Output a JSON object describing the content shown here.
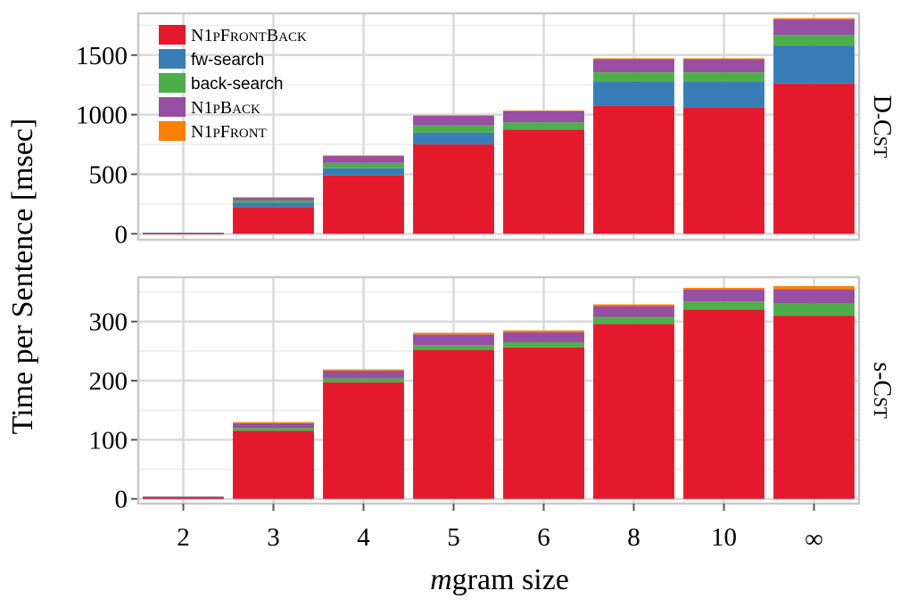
{
  "chart_data": {
    "type": "bar",
    "stacked": true,
    "categories": [
      "2",
      "3",
      "4",
      "5",
      "6",
      "8",
      "10",
      "∞"
    ],
    "xlabel": {
      "italic": "m",
      "rest": "gram size"
    },
    "ylabel": "Time per Sentence [msec]",
    "legend": [
      {
        "key": "N1pFrontBack",
        "label": "N1pFrontBack",
        "color": "#e41a2c"
      },
      {
        "key": "fw-search",
        "label": "fw-search",
        "color": "#377eb8"
      },
      {
        "key": "back-search",
        "label": "back-search",
        "color": "#4daf4a"
      },
      {
        "key": "N1pBack",
        "label": "N1pBack",
        "color": "#984ea3"
      },
      {
        "key": "N1pFront",
        "label": "N1pFront",
        "color": "#ff7f00"
      }
    ],
    "legend_placement": "top-left of upper panel",
    "grid": true,
    "panels": [
      {
        "strip": "D-Cst",
        "ylim": [
          -50,
          1850
        ],
        "yticks": [
          0,
          500,
          1000,
          1500
        ],
        "series": [
          {
            "name": "N1pFrontBack",
            "values": [
              2,
              225,
              490,
              750,
              875,
              1075,
              1060,
              1260
            ]
          },
          {
            "name": "fw-search",
            "values": [
              6,
              35,
              60,
              100,
              0,
              205,
              220,
              320
            ]
          },
          {
            "name": "back-search",
            "values": [
              1,
              20,
              45,
              60,
              60,
              75,
              75,
              90
            ]
          },
          {
            "name": "N1pBack",
            "values": [
              1,
              25,
              60,
              80,
              95,
              110,
              110,
              130
            ]
          },
          {
            "name": "N1pFront",
            "values": [
              0,
              2,
              3,
              5,
              5,
              8,
              8,
              10
            ]
          }
        ]
      },
      {
        "strip": "s-Cst",
        "ylim": [
          -8,
          375
        ],
        "yticks": [
          0,
          100,
          200,
          300
        ],
        "series": [
          {
            "name": "N1pFrontBack",
            "values": [
              3,
              115,
              197,
              252,
              256,
              296,
              320,
              310
            ]
          },
          {
            "name": "fw-search",
            "values": [
              0,
              0,
              0,
              0,
              0,
              0,
              0,
              0
            ]
          },
          {
            "name": "back-search",
            "values": [
              0.5,
              5,
              7,
              8,
              9,
              12,
              14,
              20
            ]
          },
          {
            "name": "N1pBack",
            "values": [
              0.5,
              8,
              13,
              18,
              17,
              18,
              20,
              25
            ]
          },
          {
            "name": "N1pFront",
            "values": [
              0,
              2,
              2,
              3,
              3,
              3,
              3,
              5
            ]
          }
        ]
      }
    ]
  }
}
